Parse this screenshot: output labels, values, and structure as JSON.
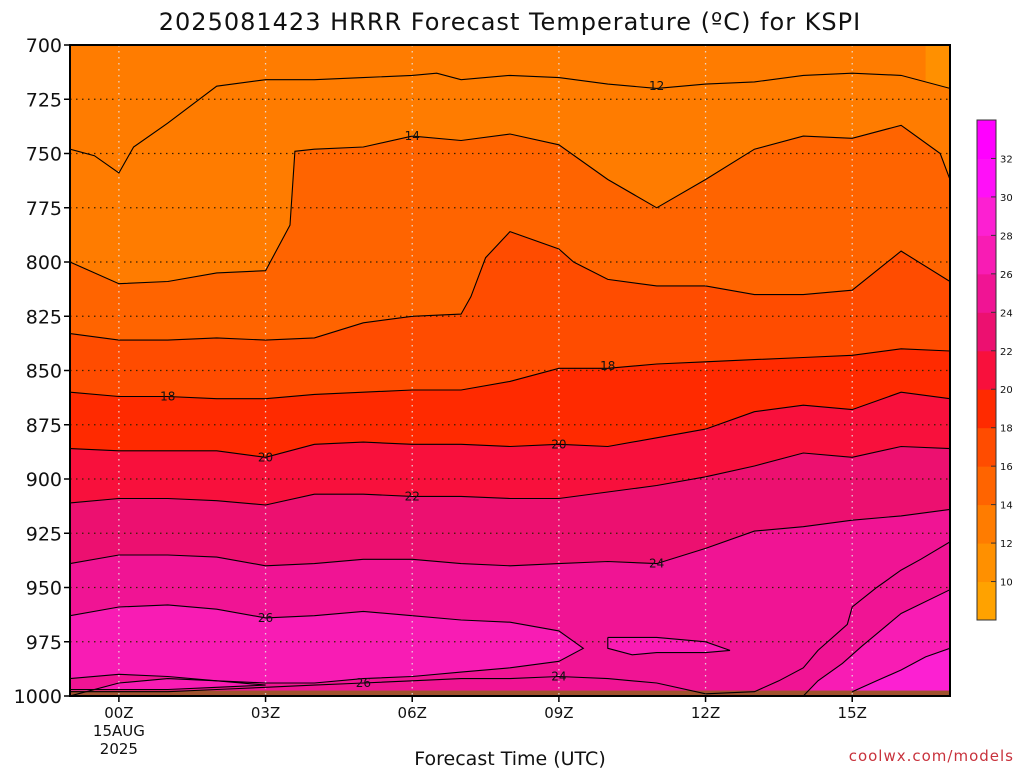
{
  "chart_data": {
    "type": "heatmap",
    "title": "2025081423 HRRR Forecast Temperature (ºC) for KSPI",
    "xlabel": "Forecast Time (UTC)",
    "ylabel": "",
    "credit": "coolwx.com/models",
    "x_ticks": [
      {
        "label": "00Z",
        "hour": 0
      },
      {
        "label": "03Z",
        "hour": 3
      },
      {
        "label": "06Z",
        "hour": 6
      },
      {
        "label": "09Z",
        "hour": 9
      },
      {
        "label": "12Z",
        "hour": 12
      },
      {
        "label": "15Z",
        "hour": 15
      }
    ],
    "x_date_label": [
      "15AUG",
      "2025"
    ],
    "xlim": [
      -1,
      17
    ],
    "y_ticks": [
      700,
      725,
      750,
      775,
      800,
      825,
      850,
      875,
      900,
      925,
      950,
      975,
      1000
    ],
    "ylim": [
      700,
      1000
    ],
    "grid": true,
    "colorbar": {
      "ticks": [
        10,
        12,
        14,
        16,
        18,
        20,
        22,
        24,
        26,
        28,
        30,
        32
      ],
      "colors": [
        {
          "min": 8,
          "color": "#ffa200"
        },
        {
          "min": 10,
          "color": "#ff9000"
        },
        {
          "min": 12,
          "color": "#ff7c00"
        },
        {
          "min": 14,
          "color": "#ff6400"
        },
        {
          "min": 16,
          "color": "#ff4c00"
        },
        {
          "min": 18,
          "color": "#ff2a00"
        },
        {
          "min": 20,
          "color": "#f8103c"
        },
        {
          "min": 22,
          "color": "#ec1070"
        },
        {
          "min": 24,
          "color": "#f01494"
        },
        {
          "min": 26,
          "color": "#f81cb4"
        },
        {
          "min": 28,
          "color": "#fc20d2"
        },
        {
          "min": 30,
          "color": "#ff10f8"
        },
        {
          "min": 32,
          "color": "#ff00ff"
        }
      ]
    },
    "ground_color": "#a0522d",
    "contours": [
      {
        "level": 12,
        "points": [
          [
            -1,
            700
          ],
          [
            16.5,
            700
          ]
        ]
      },
      {
        "level": 12,
        "points": [
          [
            -1,
            748
          ],
          [
            -0.5,
            751
          ],
          [
            0,
            759
          ],
          [
            0.3,
            747
          ],
          [
            1,
            736
          ],
          [
            2,
            719
          ],
          [
            3,
            716
          ],
          [
            4,
            716
          ],
          [
            5,
            715
          ],
          [
            6,
            714
          ],
          [
            6.5,
            713
          ],
          [
            7,
            716
          ],
          [
            8,
            714
          ],
          [
            9,
            715
          ],
          [
            10,
            718
          ],
          [
            11,
            720
          ],
          [
            12,
            718
          ],
          [
            13,
            717
          ],
          [
            14,
            714
          ],
          [
            15,
            713
          ],
          [
            16,
            714
          ],
          [
            17,
            720
          ]
        ]
      },
      {
        "level": 14,
        "points": [
          [
            -1,
            800
          ],
          [
            0,
            810
          ],
          [
            1,
            809
          ],
          [
            2,
            805
          ],
          [
            3,
            804
          ],
          [
            3.5,
            783
          ],
          [
            3.6,
            749
          ],
          [
            4,
            748
          ],
          [
            5,
            747
          ],
          [
            6,
            742
          ],
          [
            7,
            744
          ],
          [
            8,
            741
          ],
          [
            9,
            746
          ],
          [
            10,
            762
          ],
          [
            11,
            775
          ],
          [
            12,
            762
          ],
          [
            13,
            748
          ],
          [
            14,
            742
          ],
          [
            15,
            743
          ],
          [
            16,
            737
          ],
          [
            16.8,
            750
          ],
          [
            17,
            762
          ]
        ]
      },
      {
        "level": 16,
        "points": [
          [
            -1,
            833
          ],
          [
            0,
            836
          ],
          [
            1,
            836
          ],
          [
            2,
            835
          ],
          [
            3,
            836
          ],
          [
            4,
            835
          ],
          [
            5,
            828
          ],
          [
            6,
            825
          ],
          [
            7,
            824
          ],
          [
            7.2,
            816
          ],
          [
            7.5,
            798
          ],
          [
            8,
            786
          ],
          [
            9,
            794
          ],
          [
            9.3,
            800
          ],
          [
            10,
            808
          ],
          [
            11,
            811
          ],
          [
            12,
            811
          ],
          [
            13,
            815
          ],
          [
            14,
            815
          ],
          [
            15,
            813
          ],
          [
            16,
            795
          ],
          [
            17,
            809
          ]
        ]
      },
      {
        "level": 18,
        "points": [
          [
            -1,
            860
          ],
          [
            0,
            862
          ],
          [
            1,
            862
          ],
          [
            2,
            863
          ],
          [
            3,
            863
          ],
          [
            4,
            861
          ],
          [
            5,
            860
          ],
          [
            6,
            859
          ],
          [
            7,
            859
          ],
          [
            8,
            855
          ],
          [
            9,
            849
          ],
          [
            10,
            849
          ],
          [
            11,
            847
          ],
          [
            12,
            846
          ],
          [
            13,
            845
          ],
          [
            14,
            844
          ],
          [
            15,
            843
          ],
          [
            16,
            840
          ],
          [
            17,
            841
          ]
        ]
      },
      {
        "level": 20,
        "points": [
          [
            -1,
            886
          ],
          [
            0,
            887
          ],
          [
            1,
            887
          ],
          [
            2,
            887
          ],
          [
            3,
            890
          ],
          [
            4,
            884
          ],
          [
            5,
            883
          ],
          [
            6,
            884
          ],
          [
            7,
            884
          ],
          [
            8,
            885
          ],
          [
            9,
            884
          ],
          [
            10,
            885
          ],
          [
            11,
            881
          ],
          [
            12,
            877
          ],
          [
            13,
            869
          ],
          [
            14,
            866
          ],
          [
            15,
            868
          ],
          [
            16,
            860
          ],
          [
            17,
            863
          ]
        ]
      },
      {
        "level": 22,
        "points": [
          [
            -1,
            911
          ],
          [
            0,
            909
          ],
          [
            1,
            909
          ],
          [
            2,
            910
          ],
          [
            3,
            912
          ],
          [
            4,
            907
          ],
          [
            5,
            907
          ],
          [
            6,
            908
          ],
          [
            7,
            908
          ],
          [
            8,
            909
          ],
          [
            9,
            909
          ],
          [
            10,
            906
          ],
          [
            11,
            903
          ],
          [
            12,
            899
          ],
          [
            13,
            894
          ],
          [
            14,
            888
          ],
          [
            15,
            890
          ],
          [
            16,
            885
          ],
          [
            17,
            886
          ]
        ]
      },
      {
        "level": 24,
        "points": [
          [
            -1,
            939
          ],
          [
            0,
            935
          ],
          [
            1,
            935
          ],
          [
            2,
            936
          ],
          [
            3,
            940
          ],
          [
            4,
            939
          ],
          [
            5,
            937
          ],
          [
            6,
            937
          ],
          [
            7,
            939
          ],
          [
            8,
            940
          ],
          [
            9,
            939
          ],
          [
            10,
            938
          ],
          [
            11,
            939
          ],
          [
            12,
            932
          ],
          [
            13,
            924
          ],
          [
            14,
            922
          ],
          [
            15,
            919
          ],
          [
            16,
            917
          ],
          [
            17,
            914
          ]
        ]
      },
      {
        "level": 24,
        "points": [
          [
            17,
            929
          ],
          [
            16.4,
            937
          ],
          [
            16,
            942
          ],
          [
            15.5,
            950
          ],
          [
            15,
            959
          ],
          [
            14.9,
            967
          ],
          [
            14.3,
            979
          ],
          [
            14,
            987
          ],
          [
            13.5,
            993
          ],
          [
            13,
            998
          ],
          [
            12,
            999
          ],
          [
            11,
            994
          ],
          [
            10,
            992
          ],
          [
            9,
            991
          ],
          [
            8,
            992
          ],
          [
            7,
            992
          ],
          [
            6,
            993
          ],
          [
            5,
            994
          ],
          [
            4,
            995
          ],
          [
            3,
            996
          ],
          [
            2,
            997
          ],
          [
            1,
            998
          ],
          [
            0,
            998
          ],
          [
            -1,
            998
          ]
        ]
      },
      {
        "level": 26,
        "points": [
          [
            -1,
            963
          ],
          [
            0,
            959
          ],
          [
            1,
            958
          ],
          [
            2,
            960
          ],
          [
            3,
            964
          ],
          [
            4,
            963
          ],
          [
            5,
            961
          ],
          [
            6,
            963
          ],
          [
            7,
            965
          ],
          [
            8,
            966
          ],
          [
            9,
            970
          ],
          [
            9.5,
            978
          ],
          [
            9,
            984
          ],
          [
            8,
            987
          ],
          [
            7,
            989
          ],
          [
            6,
            991
          ],
          [
            5,
            992
          ],
          [
            4,
            994
          ],
          [
            3,
            994
          ],
          [
            2,
            993
          ],
          [
            1,
            991
          ],
          [
            0,
            990
          ],
          [
            -1,
            992
          ]
        ]
      },
      {
        "level": 26,
        "points": [
          [
            -1,
            1000
          ],
          [
            0,
            994
          ],
          [
            1,
            992
          ],
          [
            2,
            993
          ],
          [
            3,
            995
          ],
          [
            2,
            996
          ],
          [
            1,
            997
          ],
          [
            0,
            997
          ],
          [
            -1,
            997
          ]
        ]
      },
      {
        "level": 26,
        "points": [
          [
            10,
            973
          ],
          [
            11,
            973
          ],
          [
            12,
            975
          ],
          [
            12.5,
            979
          ],
          [
            12,
            980
          ],
          [
            11,
            980
          ],
          [
            10.5,
            981
          ],
          [
            10,
            978
          ],
          [
            10,
            973
          ]
        ]
      },
      {
        "level": 26,
        "points": [
          [
            17,
            951
          ],
          [
            16,
            962
          ],
          [
            15.2,
            977
          ],
          [
            14.8,
            985
          ],
          [
            14.3,
            993
          ],
          [
            14,
            1000
          ]
        ]
      },
      {
        "level": 28,
        "points": [
          [
            17,
            978
          ],
          [
            16.5,
            982
          ],
          [
            16,
            988
          ],
          [
            15.5,
            993
          ],
          [
            15,
            998
          ]
        ]
      }
    ],
    "contour_labels": [
      {
        "text": "12",
        "x": 11,
        "y": 719
      },
      {
        "text": "14",
        "x": 6,
        "y": 742
      },
      {
        "text": "18",
        "x": 1,
        "y": 862
      },
      {
        "text": "18",
        "x": 10,
        "y": 848
      },
      {
        "text": "20",
        "x": 3,
        "y": 890
      },
      {
        "text": "20",
        "x": 9,
        "y": 884
      },
      {
        "text": "22",
        "x": 6,
        "y": 908
      },
      {
        "text": "24",
        "x": 11,
        "y": 939
      },
      {
        "text": "24",
        "x": 9,
        "y": 991
      },
      {
        "text": "26",
        "x": 3,
        "y": 964
      },
      {
        "text": "26",
        "x": 5,
        "y": 994
      }
    ]
  }
}
